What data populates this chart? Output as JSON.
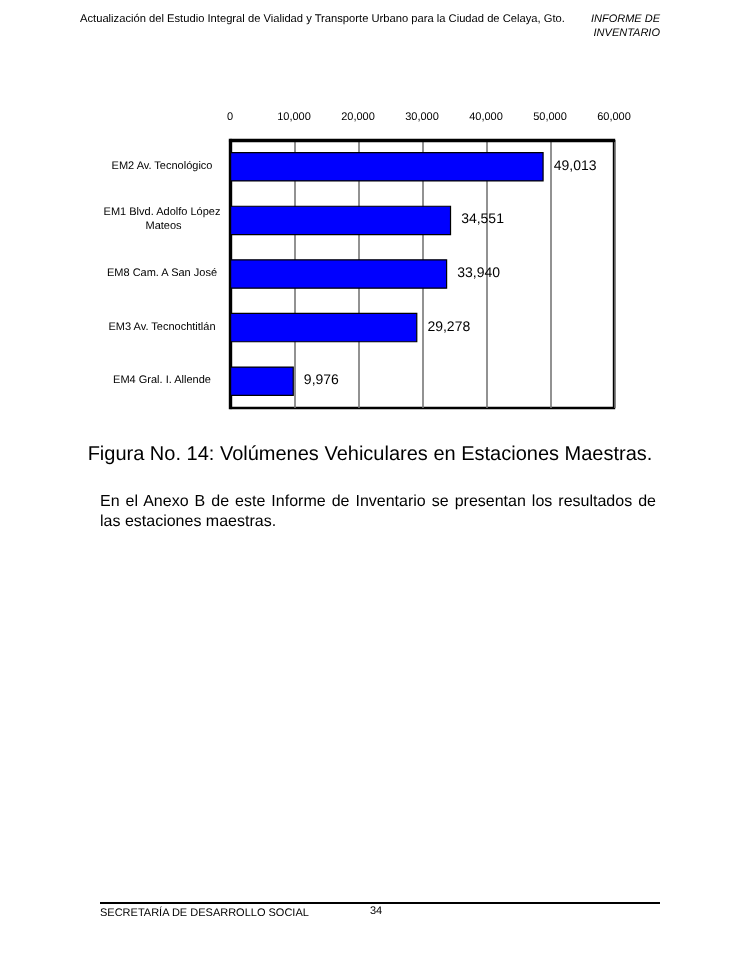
{
  "chart_data": {
    "type": "bar",
    "orientation": "horizontal",
    "title": "Figura No. 14: Volúmenes Vehiculares en Estaciones Maestras.",
    "categories": [
      "EM2 Av. Tecnológico",
      "EM1 Blvd. Adolfo López Mateos",
      "EM8 Cam. A San José",
      "EM3 Av. Tecnochtitlán",
      "EM4 Gral. I. Allende"
    ],
    "values": [
      49013,
      34551,
      33940,
      29278,
      9976
    ],
    "value_labels": [
      "49,013",
      "34,551",
      "33,940",
      "29,278",
      "9,976"
    ],
    "color": "#0000ff",
    "xlim": [
      0,
      60000
    ],
    "xticks": [
      0,
      {
        "value": 10000,
        "label": "10,000"
      },
      {
        "value": 20000,
        "label": "20,000"
      },
      {
        "value": 30000,
        "label": "30,000"
      },
      {
        "value": 40000,
        "label": "40,000"
      },
      {
        "value": 50000,
        "label": "50,000"
      },
      {
        "value": 60000,
        "label": "60,000"
      }
    ],
    "grid": "x",
    "annotations": [
      "Actualización del Estudio Integral de Vialidad y Transporte Urbano para la Ciudad de Celaya, Gto.",
      "INFORME DE INVENTARIO",
      "En el Anexo B de este Informe de Inventario se presentan los resultados de las estaciones maestras.",
      "SECRETARÍA DE DESARROLLO SOCIAL",
      "34"
    ]
  }
}
